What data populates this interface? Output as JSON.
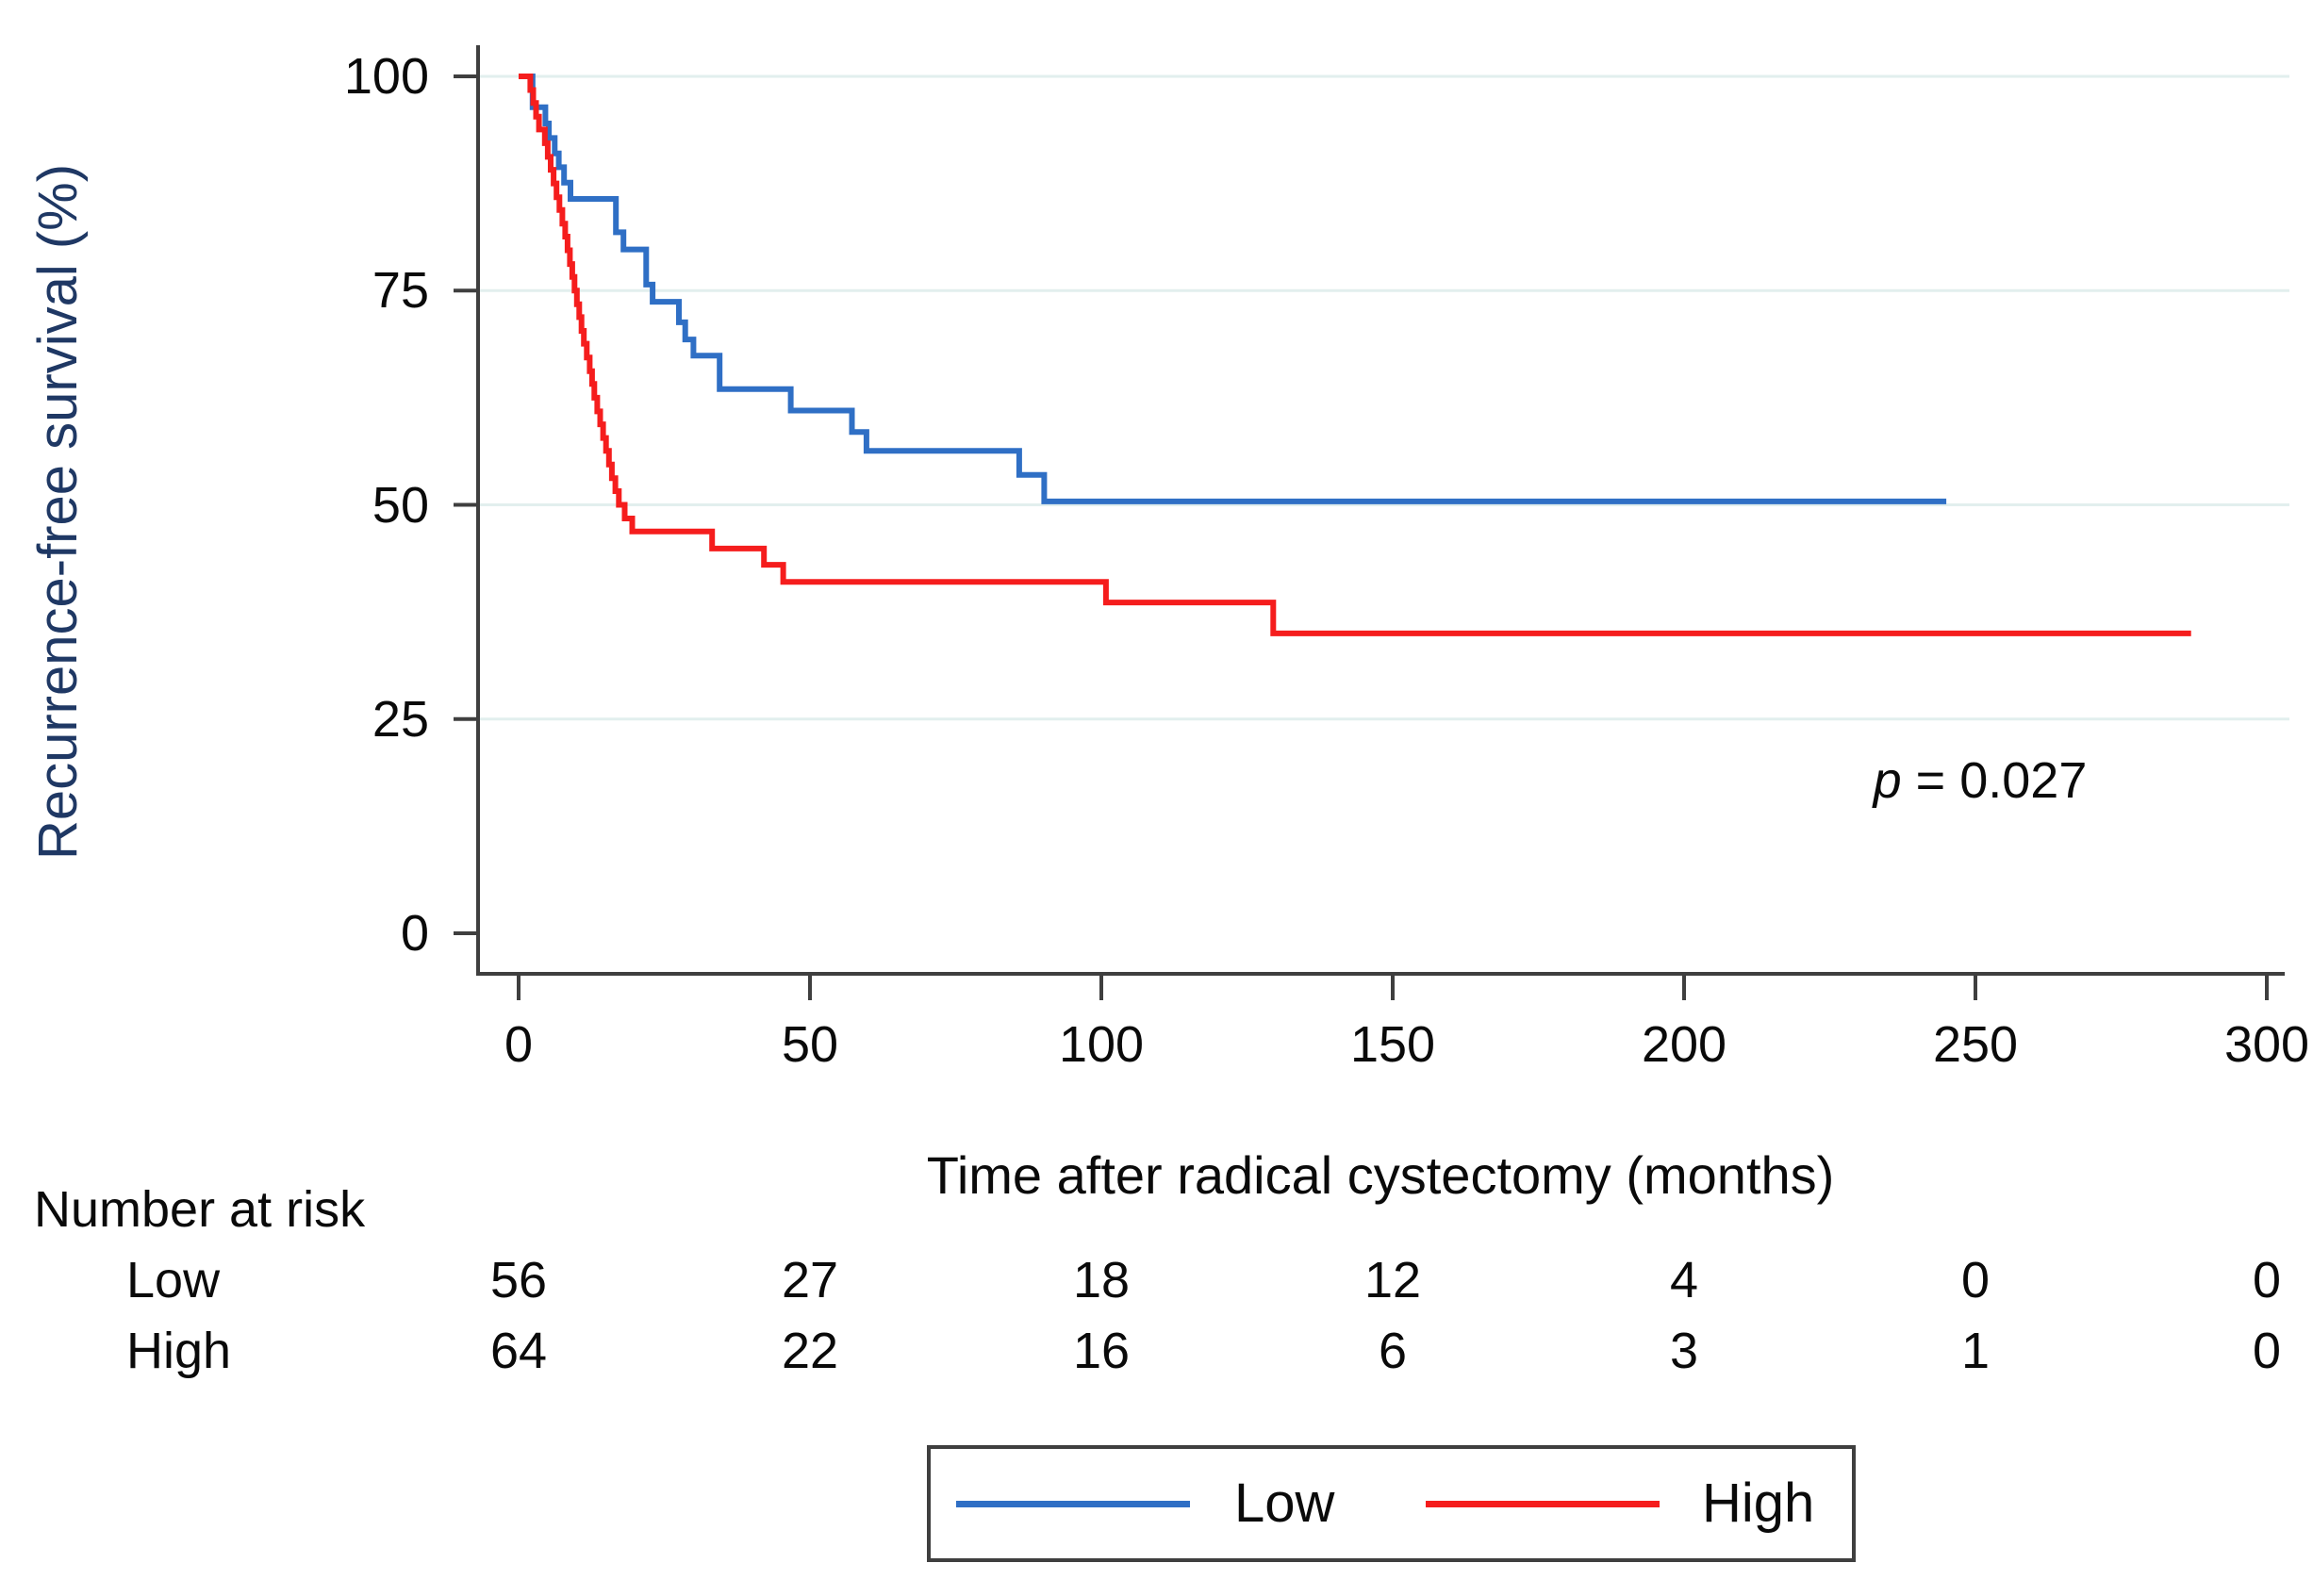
{
  "figure": {
    "y_axis_title": "Recurrence-free survival (%)",
    "x_axis_title": "Time after radical cystectomy (months)",
    "annotation": {
      "var": "p",
      "text": " = 0.027"
    }
  },
  "colors": {
    "low_curve": "#2f6fc5",
    "high_curve": "#f51d1d",
    "axis": "#3f3f3f",
    "gridline": "#e2efee",
    "y_title_text": "#1f3864",
    "tick_text": "#0a0a0a",
    "legend_border": "#3f3f3f"
  },
  "chart_data": {
    "type": "line",
    "subtype": "kaplan-meier-step",
    "title": "",
    "xlabel": "Time after radical cystectomy (months)",
    "ylabel": "Recurrence-free survival (%)",
    "xlim": [
      0,
      300
    ],
    "ylim": [
      0,
      100
    ],
    "x_ticks": [
      0,
      50,
      100,
      150,
      200,
      250,
      300
    ],
    "y_ticks": [
      100,
      75,
      50,
      25,
      0
    ],
    "grid": "horizontal light lines at y = 25, 50, 75, 100",
    "legend_position": "bottom-center boxed",
    "annotation": {
      "var": "p",
      "text": " = 0.027",
      "x": 265,
      "y": 20
    },
    "series": [
      {
        "name": "Low",
        "color": "#2f6fc5",
        "end_time": 245,
        "points": [
          [
            0,
            100
          ],
          [
            2.4,
            96.4
          ],
          [
            4.6,
            94.5
          ],
          [
            5.2,
            92.8
          ],
          [
            6.2,
            91.0
          ],
          [
            6.9,
            89.4
          ],
          [
            7.8,
            87.6
          ],
          [
            8.9,
            85.7
          ],
          [
            16.7,
            81.8
          ],
          [
            18,
            79.8
          ],
          [
            21.9,
            75.7
          ],
          [
            23,
            73.7
          ],
          [
            27.5,
            71.3
          ],
          [
            28.6,
            69.3
          ],
          [
            30,
            67.4
          ],
          [
            34.5,
            63.5
          ],
          [
            46.7,
            61.0
          ],
          [
            57.2,
            58.5
          ],
          [
            59.7,
            56.3
          ],
          [
            85.9,
            53.5
          ],
          [
            90.2,
            50.4
          ]
        ]
      },
      {
        "name": "High",
        "color": "#f51d1d",
        "end_time": 287,
        "points": [
          [
            0,
            100
          ],
          [
            2,
            98.4
          ],
          [
            2.5,
            96.9
          ],
          [
            3,
            95.3
          ],
          [
            3.5,
            93.8
          ],
          [
            4.5,
            92.2
          ],
          [
            5,
            90.6
          ],
          [
            5.5,
            89.1
          ],
          [
            6,
            87.5
          ],
          [
            6.5,
            85.9
          ],
          [
            7,
            84.4
          ],
          [
            7.5,
            82.8
          ],
          [
            8,
            81.3
          ],
          [
            8.4,
            79.7
          ],
          [
            8.8,
            78.1
          ],
          [
            9.2,
            76.6
          ],
          [
            9.6,
            75.0
          ],
          [
            10,
            73.4
          ],
          [
            10.4,
            71.9
          ],
          [
            10.8,
            70.3
          ],
          [
            11.2,
            68.8
          ],
          [
            11.7,
            67.2
          ],
          [
            12.2,
            65.6
          ],
          [
            12.6,
            64.1
          ],
          [
            13,
            62.5
          ],
          [
            13.5,
            60.9
          ],
          [
            14,
            59.4
          ],
          [
            14.5,
            57.8
          ],
          [
            15,
            56.3
          ],
          [
            15.5,
            54.7
          ],
          [
            16,
            53.1
          ],
          [
            16.6,
            51.6
          ],
          [
            17.2,
            50.0
          ],
          [
            18.2,
            48.4
          ],
          [
            19.5,
            46.9
          ],
          [
            33.2,
            44.9
          ],
          [
            42.1,
            43.0
          ],
          [
            45.4,
            41.0
          ],
          [
            100.8,
            38.6
          ],
          [
            129.5,
            35.0
          ]
        ]
      }
    ],
    "legend": {
      "entries": [
        {
          "label": "Low",
          "color": "#2f6fc5"
        },
        {
          "label": "High",
          "color": "#f51d1d"
        }
      ]
    }
  },
  "risk_table": {
    "title": "Number at risk",
    "times": [
      0,
      50,
      100,
      150,
      200,
      250,
      300
    ],
    "rows": [
      {
        "label": "Low",
        "values": [
          "56",
          "27",
          "18",
          "12",
          "4",
          "0",
          "0"
        ]
      },
      {
        "label": "High",
        "values": [
          "64",
          "22",
          "16",
          "6",
          "3",
          "1",
          "0"
        ]
      }
    ]
  }
}
